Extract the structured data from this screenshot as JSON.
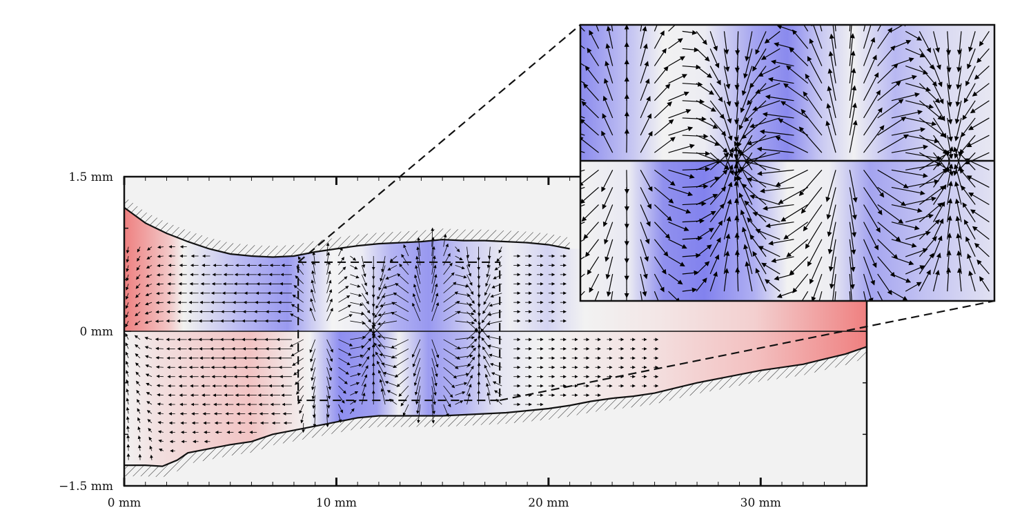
{
  "axes": {
    "x_ticks": [
      {
        "value": 0,
        "label": "0 mm"
      },
      {
        "value": 10,
        "label": "10 mm"
      },
      {
        "value": 20,
        "label": "20 mm"
      },
      {
        "value": 30,
        "label": "30 mm"
      }
    ],
    "y_ticks": [
      {
        "value": 1.5,
        "label": "1.5 mm"
      },
      {
        "value": 0,
        "label": "0 mm"
      },
      {
        "value": -1.5,
        "label": "−1.5 mm"
      }
    ],
    "xlim": [
      0,
      35
    ],
    "ylim": [
      -1.5,
      1.5
    ]
  },
  "colors": {
    "positive": "#ef7f7f",
    "negative": "#8080ee",
    "neutral": "#f2f2f2",
    "wall": "#111111",
    "arrow": "#000000"
  },
  "geometry": {
    "upper_wall": [
      [
        0,
        1.2
      ],
      [
        1,
        1.05
      ],
      [
        2,
        0.95
      ],
      [
        3,
        0.87
      ],
      [
        4,
        0.8
      ],
      [
        5,
        0.75
      ],
      [
        6,
        0.73
      ],
      [
        7,
        0.72
      ],
      [
        8,
        0.73
      ],
      [
        9,
        0.77
      ],
      [
        10,
        0.8
      ],
      [
        11,
        0.83
      ],
      [
        12,
        0.85
      ],
      [
        13,
        0.86
      ],
      [
        14,
        0.87
      ],
      [
        15,
        0.89
      ],
      [
        16,
        0.88
      ],
      [
        17,
        0.88
      ],
      [
        18,
        0.87
      ],
      [
        19,
        0.86
      ],
      [
        20,
        0.84
      ],
      [
        21,
        0.8
      ]
    ],
    "lower_wall": [
      [
        0,
        -1.3
      ],
      [
        1,
        -1.3
      ],
      [
        1.8,
        -1.31
      ],
      [
        2.5,
        -1.25
      ],
      [
        3,
        -1.18
      ],
      [
        4,
        -1.14
      ],
      [
        5,
        -1.1
      ],
      [
        6,
        -1.07
      ],
      [
        7,
        -1.0
      ],
      [
        8,
        -0.96
      ],
      [
        9,
        -0.92
      ],
      [
        10,
        -0.88
      ],
      [
        11,
        -0.84
      ],
      [
        12,
        -0.82
      ],
      [
        13,
        -0.82
      ],
      [
        14,
        -0.82
      ],
      [
        15,
        -0.82
      ],
      [
        16,
        -0.81
      ],
      [
        17,
        -0.8
      ],
      [
        18,
        -0.79
      ],
      [
        19,
        -0.77
      ],
      [
        20,
        -0.75
      ],
      [
        21,
        -0.72
      ],
      [
        22,
        -0.68
      ],
      [
        23,
        -0.65
      ],
      [
        24,
        -0.63
      ],
      [
        25,
        -0.6
      ],
      [
        26,
        -0.55
      ],
      [
        27,
        -0.5
      ],
      [
        28,
        -0.46
      ],
      [
        29,
        -0.42
      ],
      [
        30,
        -0.38
      ],
      [
        31,
        -0.35
      ],
      [
        32,
        -0.32
      ],
      [
        33,
        -0.27
      ],
      [
        34,
        -0.22
      ],
      [
        35,
        -0.15
      ]
    ],
    "zoom_region": {
      "x0": 8.2,
      "x1": 17.7,
      "y0": -0.67,
      "y1": 0.67
    }
  },
  "legend": []
}
